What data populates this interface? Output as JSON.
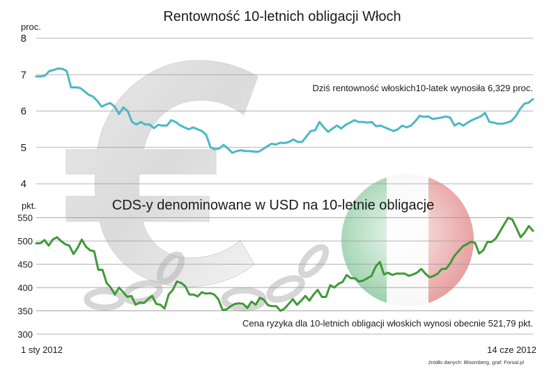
{
  "colors": {
    "yield_line": "#4ab8c4",
    "cds_line": "#3c9a36",
    "grid": "#9a9a9a",
    "text": "#1a1a1a"
  },
  "chart_data": [
    {
      "type": "line",
      "title": "Rentowność 10-letnich obligacji Włoch",
      "ylabel": "proc.",
      "ylim": [
        4,
        8
      ],
      "yticks": [
        "8",
        "7",
        "6",
        "5",
        "4"
      ],
      "grid": true,
      "annotation": "Dziś rentowność włoskich10-latek wynosiła 6,329 proc.",
      "series": [
        {
          "values": [
            6.95,
            6.95,
            6.97,
            7.1,
            7.13,
            7.17,
            7.16,
            7.1,
            6.65,
            6.65,
            6.64,
            6.55,
            6.45,
            6.4,
            6.28,
            6.12,
            6.18,
            6.22,
            6.12,
            5.92,
            6.1,
            6.0,
            5.7,
            5.63,
            5.7,
            5.63,
            5.63,
            5.53,
            5.62,
            5.6,
            5.6,
            5.75,
            5.7,
            5.61,
            5.55,
            5.5,
            5.55,
            5.5,
            5.45,
            5.35,
            5.0,
            4.95,
            4.97,
            5.07,
            4.97,
            4.85,
            4.9,
            4.92,
            4.9,
            4.9,
            4.88,
            4.88,
            4.95,
            5.03,
            5.1,
            5.08,
            5.13,
            5.12,
            5.15,
            5.22,
            5.15,
            5.15,
            5.3,
            5.45,
            5.47,
            5.7,
            5.55,
            5.43,
            5.52,
            5.6,
            5.52,
            5.62,
            5.68,
            5.75,
            5.7,
            5.7,
            5.68,
            5.7,
            5.58,
            5.6,
            5.55,
            5.5,
            5.45,
            5.5,
            5.6,
            5.55,
            5.6,
            5.72,
            5.87,
            5.84,
            5.85,
            5.78,
            5.8,
            5.82,
            5.85,
            5.82,
            5.6,
            5.67,
            5.6,
            5.68,
            5.75,
            5.8,
            5.85,
            5.95,
            5.7,
            5.68,
            5.65,
            5.65,
            5.68,
            5.72,
            5.85,
            6.05,
            6.2,
            6.23,
            6.33
          ]
        }
      ]
    },
    {
      "type": "line",
      "title": "CDS-y denominowane w USD na 10-letnie obligacje",
      "ylabel": "pkt.",
      "ylim": [
        300,
        560
      ],
      "yticks": [
        "550",
        "500",
        "450",
        "400",
        "350",
        "300"
      ],
      "grid": true,
      "annotation": "Cena ryzyka dla 10-letnich obligacji włoskich wynosi obecnie 521,79 pkt.",
      "x_start_label": "1 sty 2012",
      "x_end_label": "14 cze 2012",
      "series": [
        {
          "values": [
            495,
            495,
            502,
            490,
            503,
            508,
            500,
            493,
            490,
            472,
            485,
            503,
            488,
            480,
            478,
            438,
            438,
            410,
            400,
            385,
            400,
            390,
            380,
            382,
            363,
            368,
            367,
            375,
            382,
            365,
            363,
            355,
            385,
            395,
            413,
            410,
            403,
            385,
            385,
            381,
            390,
            387,
            388,
            385,
            375,
            352,
            353,
            360,
            365,
            366,
            365,
            356,
            370,
            363,
            378,
            374,
            362,
            360,
            360,
            350,
            355,
            365,
            375,
            363,
            372,
            382,
            372,
            385,
            395,
            380,
            380,
            405,
            400,
            408,
            412,
            427,
            420,
            420,
            413,
            415,
            420,
            425,
            445,
            455,
            428,
            432,
            427,
            430,
            430,
            430,
            425,
            428,
            432,
            440,
            430,
            422,
            425,
            430,
            440,
            440,
            452,
            468,
            478,
            488,
            493,
            498,
            496,
            473,
            480,
            498,
            498,
            505,
            520,
            535,
            550,
            546,
            528,
            508,
            518,
            532,
            521.79
          ]
        }
      ]
    }
  ],
  "source": "źródło danych: Bloomberg, graf: Forsal.pl"
}
